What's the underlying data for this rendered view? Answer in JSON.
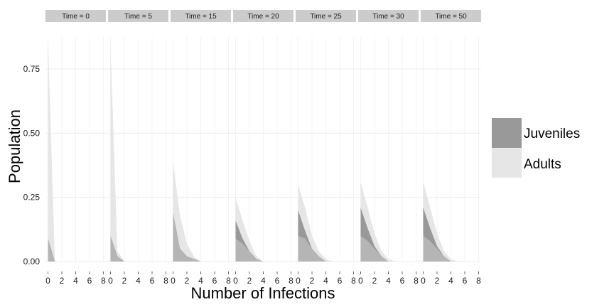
{
  "chart_data": {
    "type": "area",
    "stacked": true,
    "xlabel": "Number of Infections",
    "ylabel": "Population",
    "ylim": [
      0,
      0.875
    ],
    "yticks": [
      0,
      0.25,
      0.5,
      0.75
    ],
    "ytick_labels": [
      "0.00",
      "0.25",
      "0.50",
      "0.75"
    ],
    "xlim": [
      0,
      8
    ],
    "xticks": [
      0,
      2,
      4,
      6,
      8
    ],
    "xtick_labels": [
      "0",
      "2",
      "4",
      "6",
      "8"
    ],
    "grid": true,
    "legend_position": "right",
    "colors": {
      "Juveniles": "#999999",
      "Adults": "#e6e6e6",
      "overlap": "#b5b5b5",
      "strip": "#cccccc",
      "grid": "#ebebeb"
    },
    "x": [
      0,
      1,
      2,
      3,
      4,
      5,
      6,
      7,
      8
    ],
    "facets": [
      {
        "label": "Time = 0",
        "series": [
          {
            "name": "Juveniles",
            "values": [
              0.09,
              0.0,
              0.0,
              0.0,
              0.0,
              0.0,
              0.0,
              0.0,
              0.0
            ]
          },
          {
            "name": "Adults",
            "values": [
              0.78,
              0.0,
              0.0,
              0.0,
              0.0,
              0.0,
              0.0,
              0.0,
              0.0
            ]
          }
        ]
      },
      {
        "label": "Time = 5",
        "series": [
          {
            "name": "Juveniles",
            "values": [
              0.1,
              0.02,
              0.0,
              0.0,
              0.0,
              0.0,
              0.0,
              0.0,
              0.0
            ]
          },
          {
            "name": "Adults",
            "values": [
              0.74,
              0.02,
              0.0,
              0.0,
              0.0,
              0.0,
              0.0,
              0.0,
              0.0
            ]
          }
        ]
      },
      {
        "label": "Time = 15",
        "series": [
          {
            "name": "Juveniles",
            "values": [
              0.19,
              0.05,
              0.02,
              0.01,
              0.0,
              0.0,
              0.0,
              0.0,
              0.0
            ]
          },
          {
            "name": "Adults",
            "values": [
              0.2,
              0.13,
              0.05,
              0.01,
              0.0,
              0.0,
              0.0,
              0.0,
              0.0
            ]
          }
        ]
      },
      {
        "label": "Time = 20",
        "series": [
          {
            "name": "Juveniles",
            "values": [
              0.16,
              0.09,
              0.04,
              0.01,
              0.0,
              0.0,
              0.0,
              0.0,
              0.0
            ]
          },
          {
            "name": "Adults",
            "values": [
              0.09,
              0.07,
              0.04,
              0.01,
              0.0,
              0.0,
              0.0,
              0.0,
              0.0
            ]
          }
        ]
      },
      {
        "label": "Time = 25",
        "series": [
          {
            "name": "Juveniles",
            "values": [
              0.2,
              0.12,
              0.05,
              0.02,
              0.0,
              0.0,
              0.0,
              0.0,
              0.0
            ]
          },
          {
            "name": "Adults",
            "values": [
              0.1,
              0.09,
              0.05,
              0.02,
              0.01,
              0.0,
              0.0,
              0.0,
              0.0
            ]
          }
        ]
      },
      {
        "label": "Time = 30",
        "series": [
          {
            "name": "Juveniles",
            "values": [
              0.21,
              0.13,
              0.06,
              0.02,
              0.0,
              0.0,
              0.0,
              0.0,
              0.0
            ]
          },
          {
            "name": "Adults",
            "values": [
              0.1,
              0.08,
              0.05,
              0.02,
              0.01,
              0.0,
              0.0,
              0.0,
              0.0
            ]
          }
        ]
      },
      {
        "label": "Time = 50",
        "series": [
          {
            "name": "Juveniles",
            "values": [
              0.21,
              0.13,
              0.06,
              0.02,
              0.0,
              0.0,
              0.0,
              0.0,
              0.0
            ]
          },
          {
            "name": "Adults",
            "values": [
              0.1,
              0.08,
              0.05,
              0.02,
              0.01,
              0.0,
              0.0,
              0.0,
              0.0
            ]
          }
        ]
      }
    ]
  },
  "legend": {
    "items": [
      {
        "label": "Juveniles",
        "color": "#999999"
      },
      {
        "label": "Adults",
        "color": "#e6e6e6"
      }
    ]
  }
}
